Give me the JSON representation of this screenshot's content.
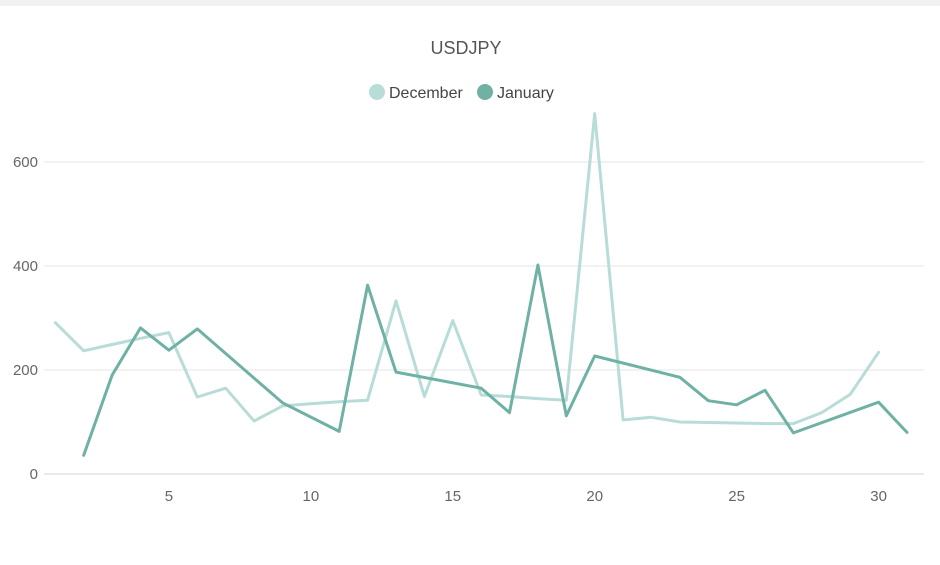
{
  "chart_data": {
    "type": "line",
    "title": "USDJPY",
    "xlabel": "",
    "ylabel": "",
    "xlim": [
      0.6,
      31.6
    ],
    "ylim": [
      0,
      700
    ],
    "x_ticks": [
      5,
      10,
      15,
      20,
      25,
      30
    ],
    "y_ticks": [
      0,
      200,
      400,
      600
    ],
    "grid": "horizontal",
    "legend": "top-center",
    "series": [
      {
        "name": "December",
        "color": "#b8dcd8",
        "points": [
          [
            1,
            291
          ],
          [
            2,
            237
          ],
          [
            3,
            249
          ],
          [
            4,
            261
          ],
          [
            5,
            272
          ],
          [
            6,
            148
          ],
          [
            7,
            165
          ],
          [
            8,
            102
          ],
          [
            9,
            131
          ],
          [
            10,
            135
          ],
          [
            11,
            139
          ],
          [
            12,
            142
          ],
          [
            13,
            333
          ],
          [
            14,
            149
          ],
          [
            15,
            295
          ],
          [
            16,
            152
          ],
          [
            17,
            149
          ],
          [
            18,
            145
          ],
          [
            19,
            142
          ],
          [
            20,
            693
          ],
          [
            21,
            104
          ],
          [
            22,
            109
          ],
          [
            23,
            100
          ],
          [
            24,
            99
          ],
          [
            25,
            98
          ],
          [
            26,
            97
          ],
          [
            27,
            97
          ],
          [
            28,
            118
          ],
          [
            29,
            153
          ],
          [
            30,
            234
          ]
        ]
      },
      {
        "name": "January",
        "color": "#6fb1a5",
        "points": [
          [
            2,
            36
          ],
          [
            3,
            190
          ],
          [
            4,
            281
          ],
          [
            5,
            238
          ],
          [
            6,
            279
          ],
          [
            9,
            137
          ],
          [
            11,
            82
          ],
          [
            12,
            363
          ],
          [
            13,
            196
          ],
          [
            16,
            165
          ],
          [
            17,
            118
          ],
          [
            18,
            402
          ],
          [
            19,
            112
          ],
          [
            20,
            227
          ],
          [
            23,
            186
          ],
          [
            24,
            141
          ],
          [
            25,
            133
          ],
          [
            26,
            161
          ],
          [
            27,
            79
          ],
          [
            30,
            138
          ],
          [
            31,
            80
          ]
        ]
      }
    ]
  }
}
